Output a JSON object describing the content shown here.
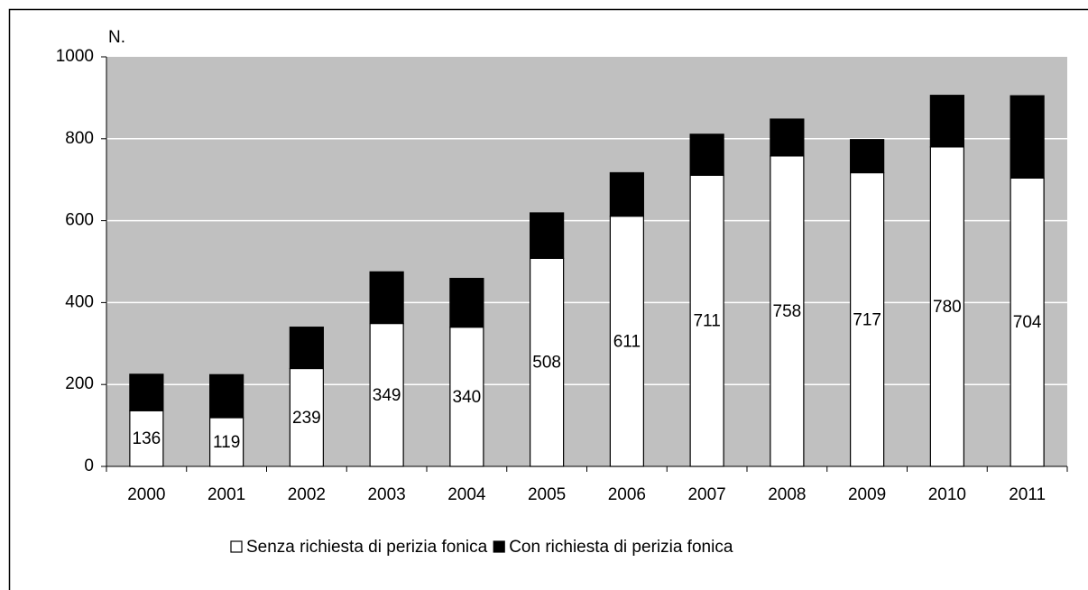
{
  "chart_data": {
    "type": "bar",
    "stacked": true,
    "y_axis_label": "N.",
    "categories": [
      "2000",
      "2001",
      "2002",
      "2003",
      "2004",
      "2005",
      "2006",
      "2007",
      "2008",
      "2009",
      "2010",
      "2011"
    ],
    "series": [
      {
        "name": "Senza richiesta di perizia fonica",
        "color": "#ffffff",
        "values": [
          136,
          119,
          239,
          349,
          340,
          508,
          611,
          711,
          758,
          717,
          780,
          704
        ]
      },
      {
        "name": "Con richiesta di perizia fonica",
        "color": "#000000",
        "values": [
          89,
          105,
          101,
          126,
          119,
          111,
          106,
          100,
          90,
          81,
          126,
          201
        ]
      }
    ],
    "ylim": [
      0,
      1000
    ],
    "yticks": [
      0,
      200,
      400,
      600,
      800,
      1000
    ],
    "grid": true,
    "legend": "bottom",
    "plot_background": "#c0c0c0"
  }
}
